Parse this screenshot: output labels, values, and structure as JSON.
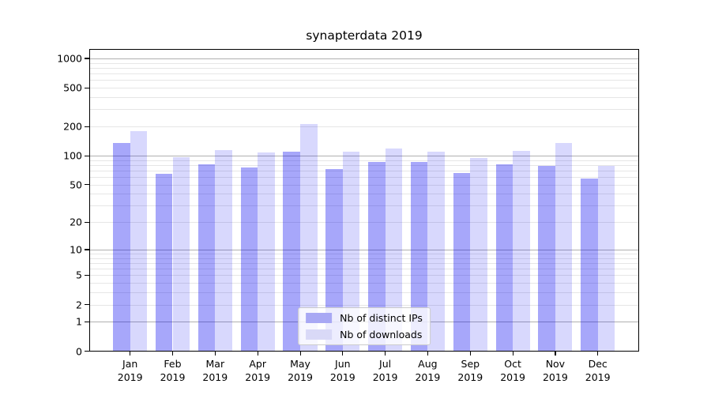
{
  "chart_data": {
    "type": "bar",
    "title": "synapterdata 2019",
    "categories": [
      "Jan",
      "Feb",
      "Mar",
      "Apr",
      "May",
      "Jun",
      "Jul",
      "Aug",
      "Sep",
      "Oct",
      "Nov",
      "Dec"
    ],
    "xlabel_year": "2019",
    "series": [
      {
        "name": "Nb of distinct IPs",
        "values": [
          133,
          64,
          81,
          75,
          108,
          72,
          85,
          85,
          66,
          81,
          78,
          57
        ],
        "fill": "rgba(0,0,240,0.345)",
        "legend_color": "#a8a8f4"
      },
      {
        "name": "Nb of downloads",
        "values": [
          178,
          96,
          113,
          107,
          210,
          108,
          117,
          108,
          93,
          110,
          135,
          78
        ],
        "fill": "rgba(0,0,240,0.152)",
        "legend_color": "#d9d9f7"
      }
    ],
    "yticks": [
      0,
      1,
      2,
      5,
      10,
      20,
      50,
      100,
      200,
      500,
      1000
    ],
    "yscale": "log1p",
    "ylim": [
      0,
      1240
    ],
    "grid": {
      "major_lines": [
        1,
        10,
        100,
        1000
      ],
      "minor_lines": [
        2,
        3,
        4,
        5,
        6,
        7,
        8,
        9,
        20,
        30,
        40,
        50,
        60,
        70,
        80,
        90,
        200,
        300,
        400,
        500,
        600,
        700,
        800,
        900
      ],
      "major_color": "#b0b0b0",
      "minor_color": "#e6e6e6"
    },
    "legend_position": "lower center",
    "xlabel": "",
    "ylabel": ""
  }
}
